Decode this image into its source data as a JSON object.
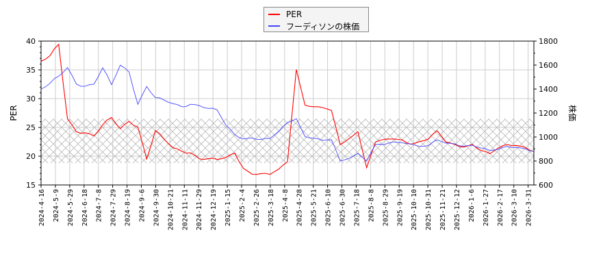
{
  "chart_data": {
    "type": "line",
    "title": "",
    "legend": {
      "position": "top-center",
      "entries": [
        {
          "label": "PER",
          "color": "#ff0000"
        },
        {
          "label": "フーディソンの株価",
          "color": "#4444ff"
        }
      ]
    },
    "xlabel": "",
    "ylabel_left": "PER",
    "ylabel_right": "株価",
    "ylim_left": [
      15,
      40
    ],
    "ylim_right": [
      600,
      1800
    ],
    "yticks_left": [
      15,
      20,
      25,
      30,
      35,
      40
    ],
    "yticks_right": [
      600,
      800,
      1000,
      1200,
      1400,
      1600,
      1800
    ],
    "grid": true,
    "hatched_band_per": [
      18.8,
      26.5
    ],
    "x_tick_labels": [
      "2024-4-16",
      "2024-5-9",
      "2024-5-29",
      "2024-6-18",
      "2024-7-8",
      "2024-7-29",
      "2024-8-19",
      "2024-9-6",
      "2024-9-30",
      "2024-10-21",
      "2024-11-11",
      "2024-11-29",
      "2024-12-19",
      "2025-1-15",
      "2025-2-4",
      "2025-2-26",
      "2025-3-18",
      "2025-4-8",
      "2025-4-28",
      "2025-5-21",
      "2025-6-10",
      "2025-6-30",
      "2025-7-18",
      "2025-8-8",
      "2025-8-29",
      "2025-9-19",
      "2025-10-10",
      "2025-10-31",
      "2025-11-21",
      "2025-12-12",
      "2026-1-6",
      "2026-1-27",
      "2026-2-17",
      "2026-3-10",
      "2026-3-31"
    ],
    "series": [
      {
        "name": "PER",
        "axis": "left",
        "color": "#ff0000",
        "values": [
          36.5,
          37.5,
          39.5,
          26.5,
          24.2,
          24.0,
          23.5,
          25.5,
          26.8,
          24.8,
          26.0,
          25.0,
          19.5,
          24.5,
          23.0,
          21.5,
          20.8,
          20.5,
          19.5,
          19.6,
          19.5,
          19.8,
          20.5,
          17.8,
          16.8,
          17.0,
          16.9,
          17.8,
          19.0,
          35.0,
          28.8,
          28.6,
          28.5,
          28.0,
          22.0,
          23.0,
          24.2,
          18.0,
          22.5,
          23.0,
          23.0,
          22.8,
          22.0,
          22.5,
          23.0,
          24.5,
          22.5,
          22.0,
          21.5,
          22.0,
          21.0,
          20.5,
          21.5,
          22.0,
          21.8,
          21.5,
          20.8
        ]
      },
      {
        "name": "フーディソンの株価",
        "axis": "right",
        "color": "#4444ff",
        "values": [
          1400,
          1450,
          1510,
          1580,
          1440,
          1420,
          1440,
          1580,
          1440,
          1600,
          1540,
          1270,
          1420,
          1330,
          1310,
          1280,
          1250,
          1270,
          1260,
          1240,
          1230,
          1100,
          1020,
          980,
          990,
          980,
          990,
          1050,
          1120,
          1150,
          1000,
          990,
          975,
          980,
          800,
          820,
          860,
          800,
          940,
          940,
          960,
          950,
          940,
          920,
          930,
          980,
          950,
          940,
          920,
          930,
          910,
          890,
          900,
          920,
          910,
          900,
          880
        ]
      }
    ]
  }
}
